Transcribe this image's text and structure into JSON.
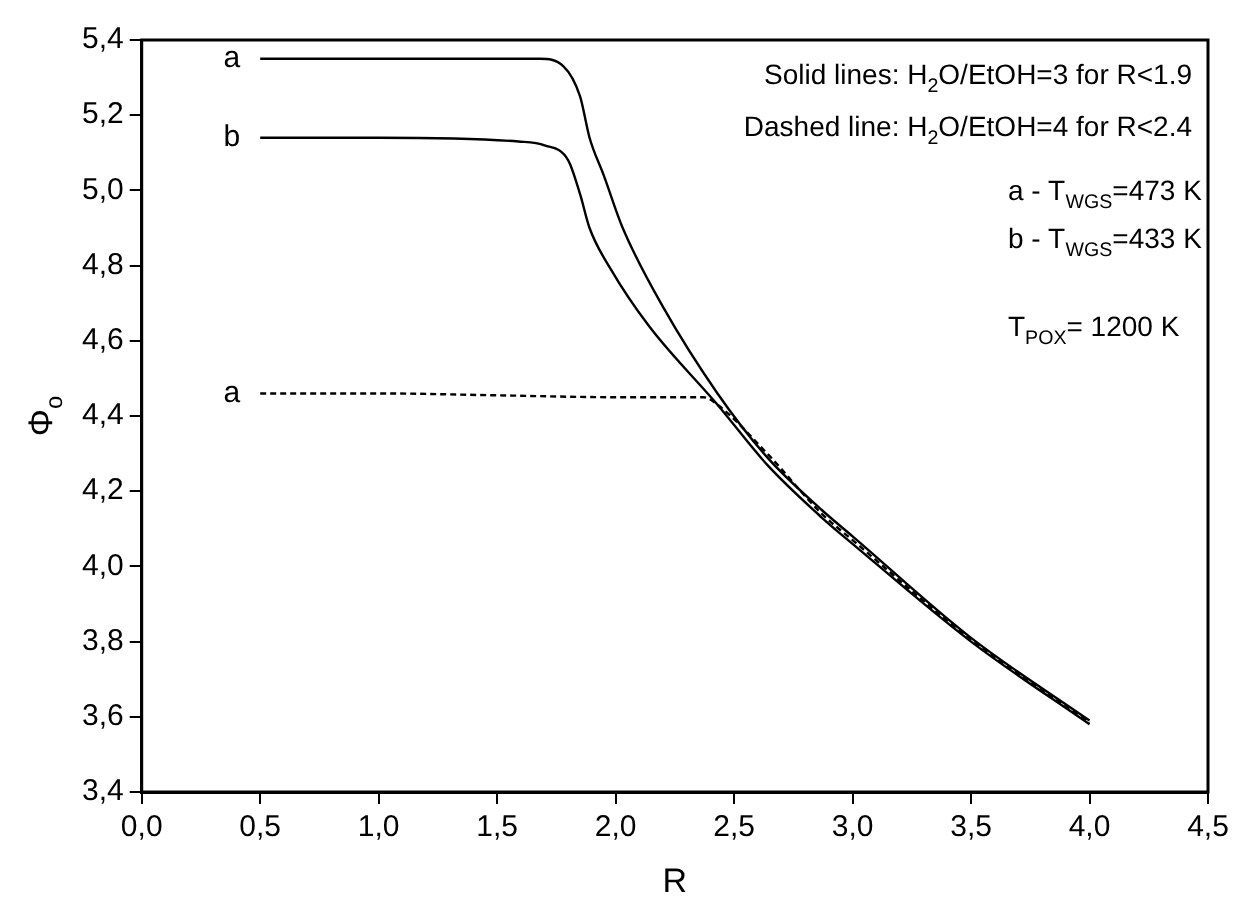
{
  "chart_data": {
    "type": "line",
    "xlabel": "R",
    "ylabel": "Φ$_{o}$",
    "xlim": [
      0,
      4.5
    ],
    "ylim": [
      3.4,
      5.4
    ],
    "xticks": [
      {
        "value": 0,
        "label": "0,0"
      },
      {
        "value": 0.5,
        "label": "0,5"
      },
      {
        "value": 1,
        "label": "1,0"
      },
      {
        "value": 1.5,
        "label": "1,5"
      },
      {
        "value": 2,
        "label": "2,0"
      },
      {
        "value": 2.5,
        "label": "2,5"
      },
      {
        "value": 3,
        "label": "3,0"
      },
      {
        "value": 3.5,
        "label": "3,5"
      },
      {
        "value": 4,
        "label": "4,0"
      },
      {
        "value": 4.5,
        "label": "4,5"
      }
    ],
    "yticks": [
      {
        "value": 3.4,
        "label": "3,4"
      },
      {
        "value": 3.6,
        "label": "3,6"
      },
      {
        "value": 3.8,
        "label": "3,8"
      },
      {
        "value": 4,
        "label": "4,0"
      },
      {
        "value": 4.2,
        "label": "4,2"
      },
      {
        "value": 4.4,
        "label": "4,4"
      },
      {
        "value": 4.6,
        "label": "4,6"
      },
      {
        "value": 4.8,
        "label": "4,8"
      },
      {
        "value": 5,
        "label": "5,0"
      },
      {
        "value": 5.2,
        "label": "5,2"
      },
      {
        "value": 5.4,
        "label": "5,4"
      }
    ],
    "grid": false,
    "legend": false,
    "marker": "none",
    "series": [
      {
        "name": "a",
        "color": "#000000",
        "line_style": "solid",
        "x": [
          0.5,
          1.0,
          1.5,
          1.68,
          1.78,
          1.85,
          1.89,
          1.95,
          2.03,
          2.2,
          2.43,
          2.64,
          2.87,
          3.0,
          3.5,
          4.0
        ],
        "values": [
          5.35,
          5.35,
          5.35,
          5.35,
          5.33,
          5.25,
          5.14,
          5.04,
          4.9,
          4.69,
          4.46,
          4.29,
          4.15,
          4.08,
          3.81,
          3.59
        ]
      },
      {
        "name": "b",
        "color": "#000000",
        "line_style": "solid",
        "x": [
          0.5,
          1.0,
          1.59,
          1.7,
          1.8,
          1.85,
          1.89,
          1.98,
          2.14,
          2.43,
          2.64,
          2.87,
          3.0,
          3.5,
          4.0
        ],
        "values": [
          5.14,
          5.14,
          5.13,
          5.12,
          5.08,
          4.99,
          4.9,
          4.79,
          4.64,
          4.43,
          4.27,
          4.13,
          4.06,
          3.8,
          3.58
        ]
      },
      {
        "name": "a",
        "color": "#000000",
        "line_style": "dashed",
        "x": [
          0.5,
          1.0,
          1.5,
          2.0,
          2.3,
          2.37,
          2.43,
          2.64,
          2.87,
          3.0,
          3.5,
          4.0
        ],
        "values": [
          4.46,
          4.46,
          4.455,
          4.45,
          4.45,
          4.45,
          4.43,
          4.3,
          4.14,
          4.07,
          3.805,
          3.585
        ]
      }
    ],
    "annotations": [
      "Solid lines: H$_{2}$O/EtOH=3 for R<1.9",
      "Dashed line: H$_{2}$O/EtOH=4 for R<2.4",
      "a - T$_{WGS}$=473 K",
      "b - T$_{WGS}$=433 K",
      "T$_{POX}$= 1200 K"
    ]
  }
}
